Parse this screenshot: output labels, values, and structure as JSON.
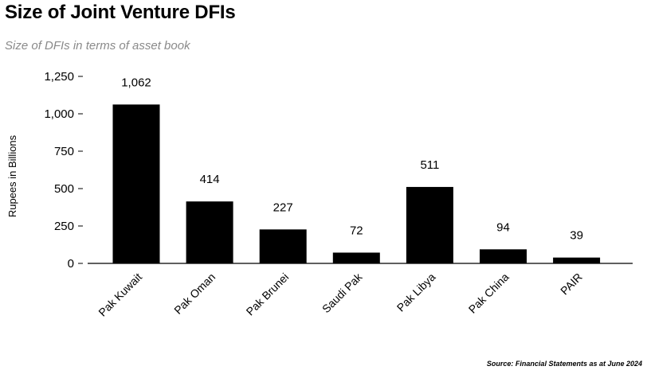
{
  "title": "Size of Joint Venture DFIs",
  "subtitle": "Size of DFIs in terms of asset book",
  "source": "Source: Financial Statements as at June 2024",
  "colors": {
    "bar": "#000000",
    "axis": "#000000",
    "subtitle": "#8a8a8a"
  },
  "chart_data": {
    "type": "bar",
    "title": "Size of Joint Venture DFIs",
    "subtitle": "Size of DFIs in terms of asset book",
    "ylabel": "Rupees in Billions",
    "xlabel": "",
    "ylim": [
      0,
      1250
    ],
    "yticks": [
      0,
      250,
      500,
      750,
      1000,
      1250
    ],
    "ytick_labels": [
      "0",
      "250",
      "500",
      "750",
      "1,000",
      "1,250"
    ],
    "grid": false,
    "categories": [
      "Pak Kuwait",
      "Pak Oman",
      "Pak Brunei",
      "Saudi Pak",
      "Pak Libya",
      "Pak China",
      "PAIR"
    ],
    "values": [
      1062,
      414,
      227,
      72,
      511,
      94,
      39
    ],
    "value_labels": [
      "1,062",
      "414",
      "227",
      "72",
      "511",
      "94",
      "39"
    ]
  }
}
